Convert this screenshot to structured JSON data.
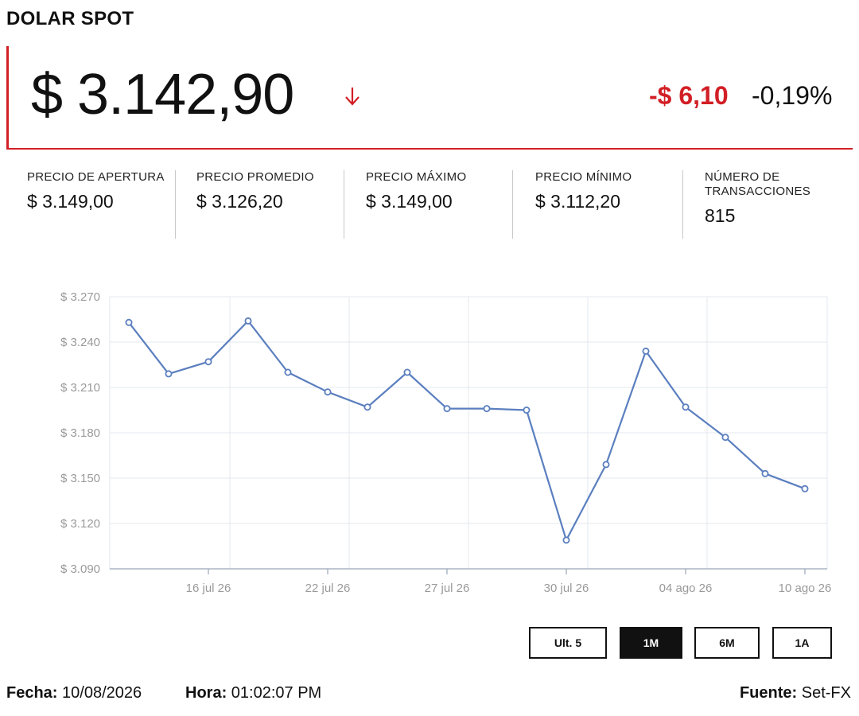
{
  "header": {
    "title": "DOLAR SPOT",
    "price": "$ 3.142,90",
    "change_abs": "-$ 6,10",
    "change_pct": "-0,19%",
    "direction_icon": "arrow-down-icon",
    "colors": {
      "accent": "#d21f26",
      "line": "#5b7fbf"
    }
  },
  "stats": [
    {
      "label": "PRECIO DE APERTURA",
      "value": "$ 3.149,00"
    },
    {
      "label": "PRECIO PROMEDIO",
      "value": "$ 3.126,20"
    },
    {
      "label": "PRECIO MÁXIMO",
      "value": "$ 3.149,00"
    },
    {
      "label": "PRECIO MÍNIMO",
      "value": "$ 3.112,20"
    },
    {
      "label": "NÚMERO DE TRANSACCIONES",
      "value": "815"
    }
  ],
  "chart_data": {
    "type": "line",
    "title": "",
    "xlabel": "",
    "ylabel": "",
    "ylim": [
      3090,
      3270
    ],
    "y_ticks": [
      3270,
      3240,
      3210,
      3180,
      3150,
      3120,
      3090
    ],
    "y_tick_labels": [
      "$ 3.270",
      "$ 3.240",
      "$ 3.210",
      "$ 3.180",
      "$ 3.150",
      "$ 3.120",
      "$ 3.090"
    ],
    "x_tick_labels": [
      {
        "label": "16 jul 26",
        "index": 2
      },
      {
        "label": "22 jul 26",
        "index": 5
      },
      {
        "label": "27 jul 26",
        "index": 8
      },
      {
        "label": "30 jul 26",
        "index": 11
      },
      {
        "label": "04 ago 26",
        "index": 14
      },
      {
        "label": "10 ago 26",
        "index": 17
      }
    ],
    "grid": true,
    "series": [
      {
        "values": [
          3253,
          3219,
          3227,
          3254,
          3220,
          3207,
          3197,
          3220,
          3196,
          3196,
          3195,
          3109,
          3159,
          3234,
          3197,
          3177,
          3153,
          3143
        ]
      }
    ]
  },
  "range_buttons": [
    {
      "label": "Ult. 5",
      "active": false
    },
    {
      "label": "1M",
      "active": true
    },
    {
      "label": "6M",
      "active": false
    },
    {
      "label": "1A",
      "active": false
    }
  ],
  "footer": {
    "date_label": "Fecha:",
    "date_value": "10/08/2026",
    "time_label": "Hora:",
    "time_value": "01:02:07 PM",
    "source_label": "Fuente:",
    "source_value": "Set-FX"
  }
}
